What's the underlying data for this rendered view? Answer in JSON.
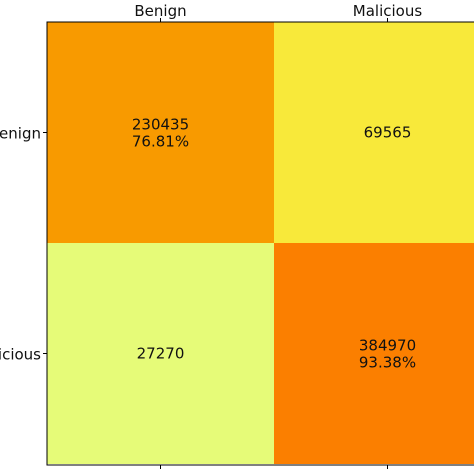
{
  "chart_data": {
    "type": "heatmap",
    "x_tick_labels": [
      "Benign",
      "Malicious"
    ],
    "y_tick_labels": [
      "Benign",
      "Malicious"
    ],
    "x_tick_position": "top",
    "cells": [
      {
        "row": 0,
        "col": 0,
        "value": 230435,
        "value_text": "230435",
        "percent_text": "76.81%",
        "color": "#F89A00"
      },
      {
        "row": 0,
        "col": 1,
        "value": 69565,
        "value_text": "69565",
        "percent_text": "",
        "color": "#F8E93A"
      },
      {
        "row": 1,
        "col": 0,
        "value": 27270,
        "value_text": "27270",
        "percent_text": "",
        "color": "#E6FB78"
      },
      {
        "row": 1,
        "col": 1,
        "value": 384970,
        "value_text": "384970",
        "percent_text": "93.38%",
        "color": "#FB7F00"
      }
    ],
    "legend": "none",
    "grid": false
  }
}
